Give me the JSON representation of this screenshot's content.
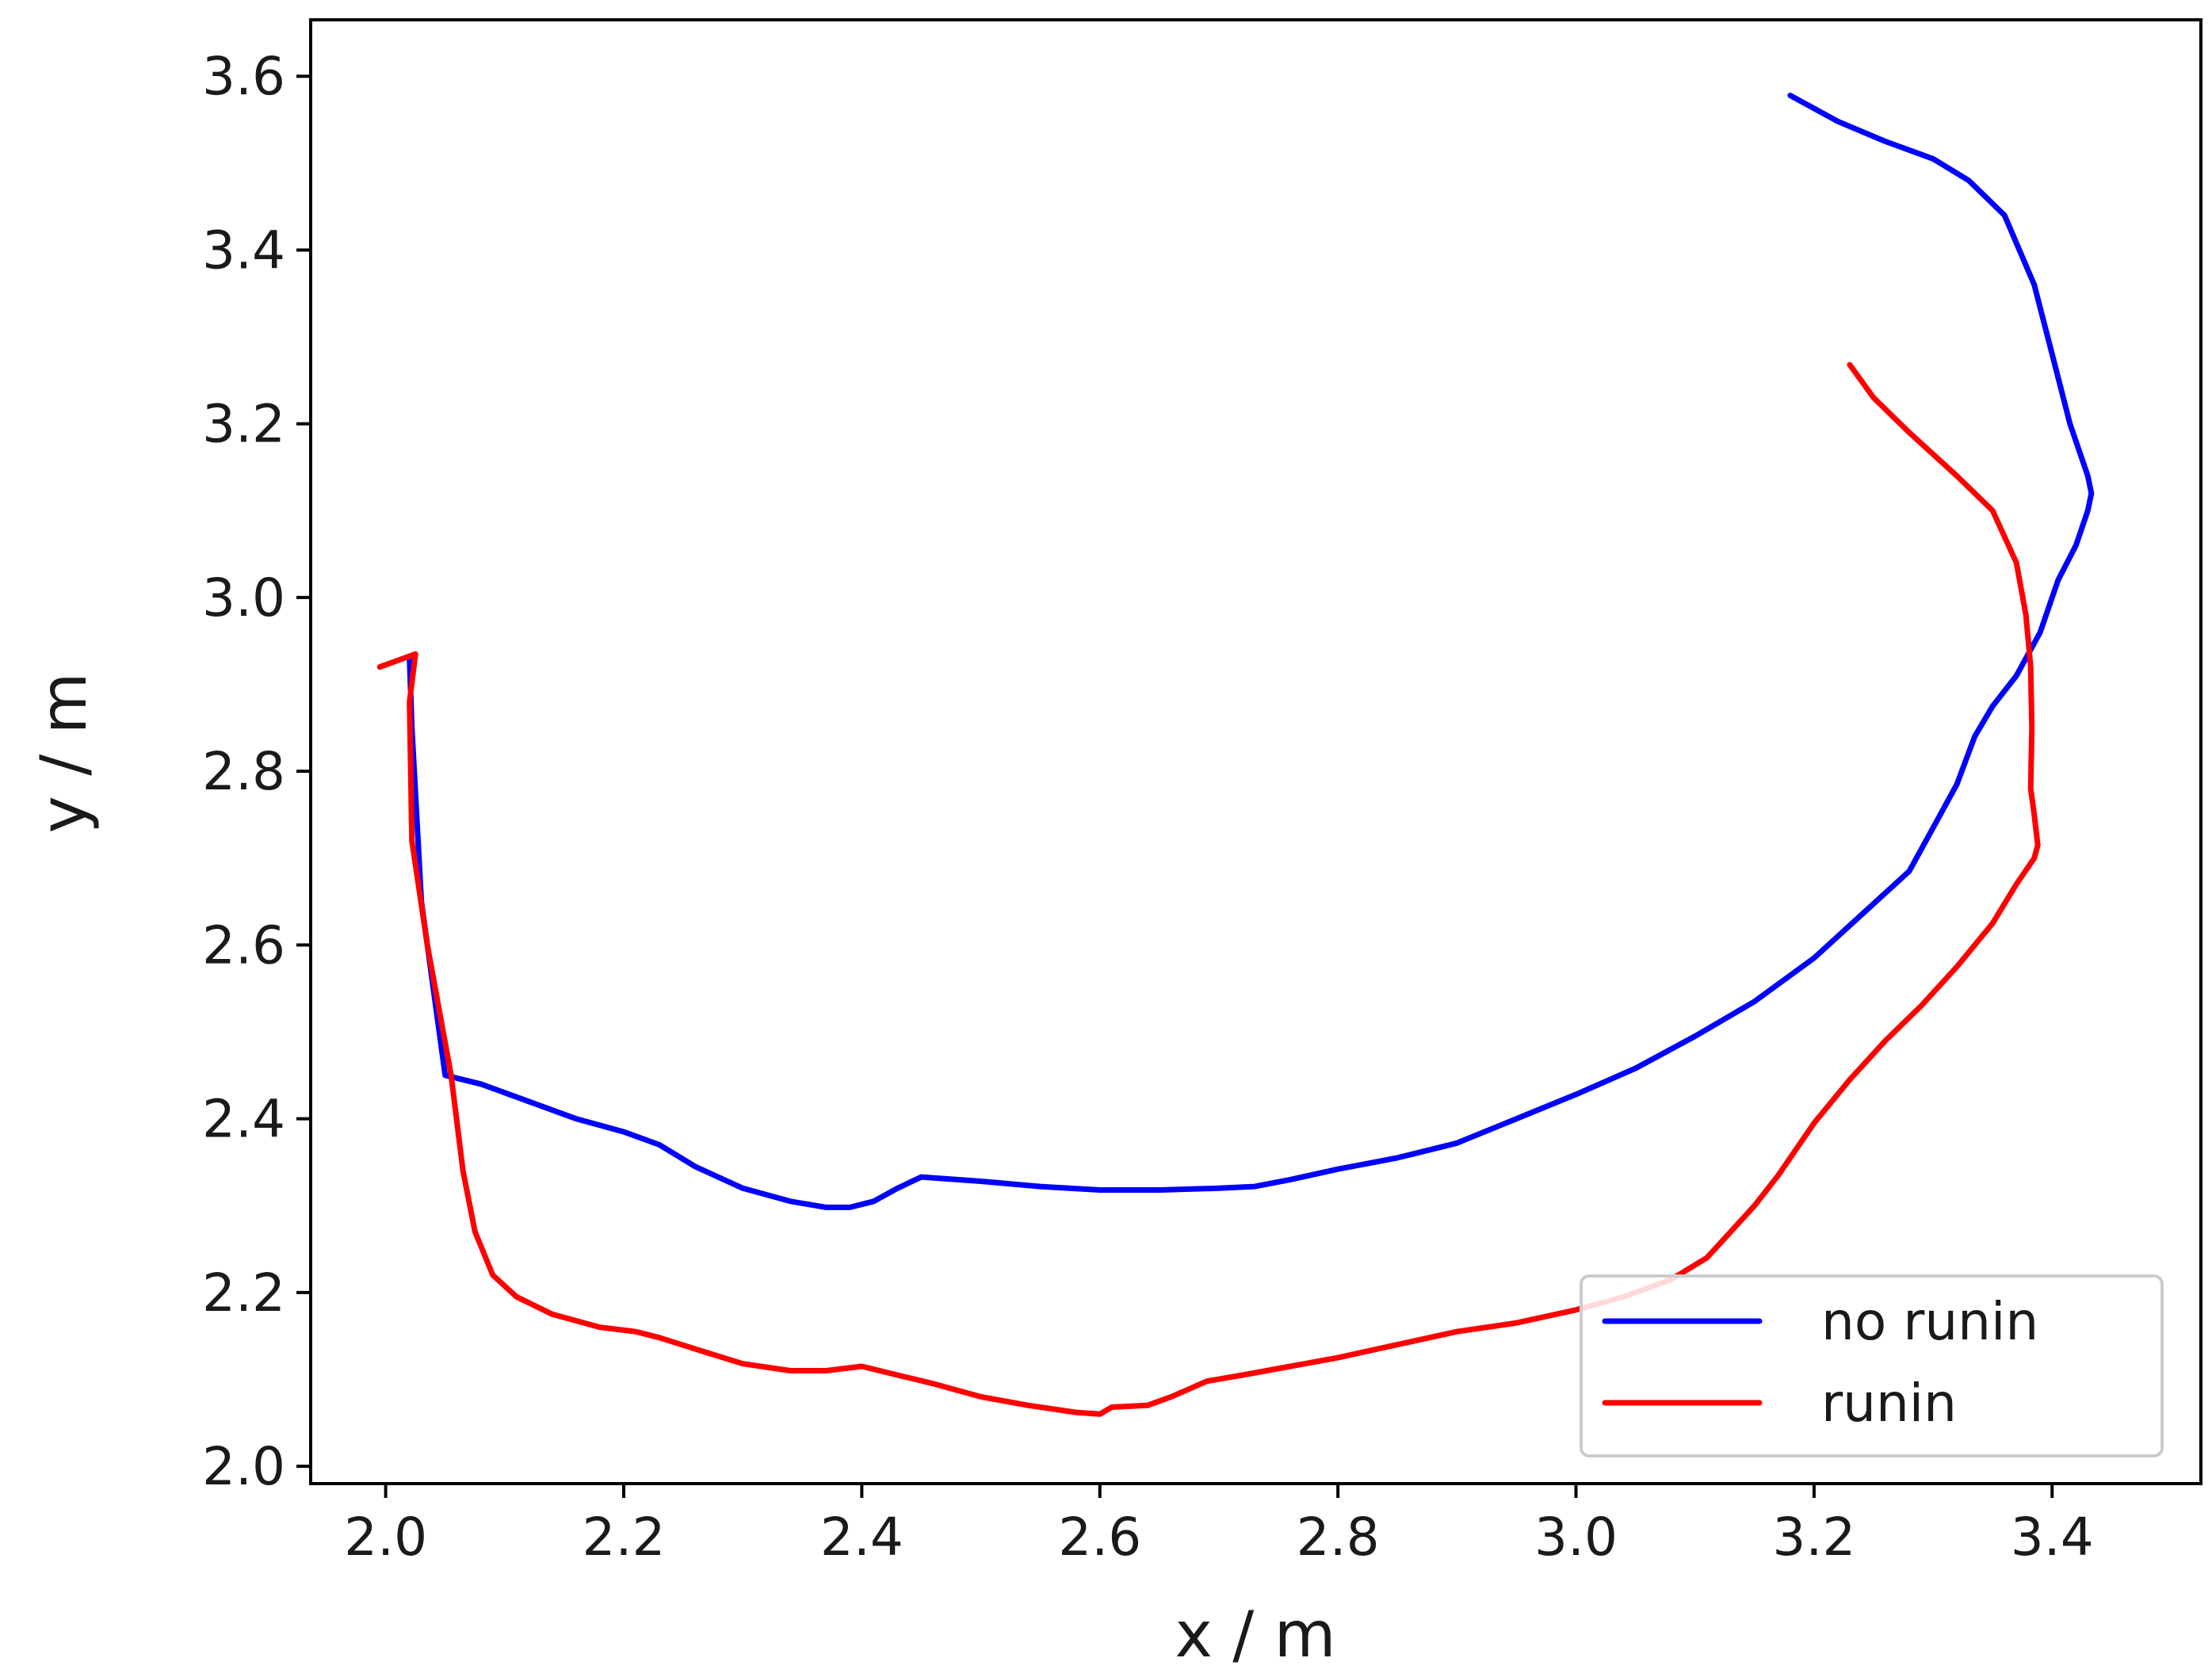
{
  "chart_data": {
    "type": "line",
    "title": "",
    "xlabel": "x / m",
    "ylabel": "y / m",
    "xlim": [
      1.937,
      3.525
    ],
    "ylim": [
      1.98,
      3.665
    ],
    "xticks": [
      2.0,
      2.2,
      2.4,
      2.6,
      2.8,
      3.0,
      3.2,
      3.4
    ],
    "yticks": [
      2.0,
      2.2,
      2.4,
      2.6,
      2.8,
      3.0,
      3.2,
      3.4,
      3.6
    ],
    "xtick_labels": [
      "2.0",
      "2.2",
      "2.4",
      "2.6",
      "2.8",
      "3.0",
      "3.2",
      "3.4"
    ],
    "ytick_labels": [
      "2.0",
      "2.2",
      "2.4",
      "2.6",
      "2.8",
      "3.0",
      "3.2",
      "3.4",
      "3.6"
    ],
    "grid": false,
    "legend_position": "bottom-right",
    "series": [
      {
        "name": "no runin",
        "color": "#0000ff",
        "x": [
          2.02,
          2.022,
          2.03,
          2.05,
          2.08,
          2.12,
          2.16,
          2.2,
          2.23,
          2.26,
          2.3,
          2.34,
          2.37,
          2.39,
          2.41,
          2.43,
          2.45,
          2.5,
          2.55,
          2.6,
          2.65,
          2.7,
          2.73,
          2.76,
          2.8,
          2.85,
          2.9,
          2.95,
          3.0,
          3.05,
          3.1,
          3.15,
          3.2,
          3.24,
          3.28,
          3.3,
          3.32,
          3.335,
          3.35,
          3.37,
          3.39,
          3.405,
          3.42,
          3.43,
          3.433,
          3.43,
          3.415,
          3.4,
          3.385,
          3.36,
          3.33,
          3.3,
          3.26,
          3.22,
          3.18
        ],
        "y": [
          2.93,
          2.85,
          2.65,
          2.45,
          2.44,
          2.42,
          2.4,
          2.385,
          2.37,
          2.345,
          2.32,
          2.305,
          2.298,
          2.298,
          2.305,
          2.32,
          2.333,
          2.328,
          2.322,
          2.318,
          2.318,
          2.32,
          2.322,
          2.33,
          2.342,
          2.355,
          2.372,
          2.4,
          2.428,
          2.458,
          2.495,
          2.535,
          2.585,
          2.635,
          2.685,
          2.735,
          2.785,
          2.84,
          2.875,
          2.91,
          2.96,
          3.02,
          3.06,
          3.1,
          3.12,
          3.14,
          3.2,
          3.28,
          3.36,
          3.44,
          3.48,
          3.505,
          3.525,
          3.548,
          3.578
        ]
      },
      {
        "name": "runin",
        "color": "#ff0000",
        "x": [
          1.995,
          2.025,
          2.02,
          2.022,
          2.035,
          2.055,
          2.065,
          2.075,
          2.09,
          2.11,
          2.14,
          2.18,
          2.21,
          2.23,
          2.26,
          2.3,
          2.34,
          2.37,
          2.4,
          2.43,
          2.46,
          2.5,
          2.54,
          2.58,
          2.6,
          2.61,
          2.64,
          2.66,
          2.69,
          2.72,
          2.76,
          2.8,
          2.85,
          2.9,
          2.95,
          3.0,
          3.04,
          3.08,
          3.11,
          3.13,
          3.15,
          3.17,
          3.2,
          3.23,
          3.26,
          3.29,
          3.32,
          3.35,
          3.37,
          3.385,
          3.388,
          3.385,
          3.382,
          3.383,
          3.382,
          3.378,
          3.37,
          3.35,
          3.32,
          3.28,
          3.25,
          3.23
        ],
        "y": [
          2.92,
          2.935,
          2.88,
          2.72,
          2.6,
          2.45,
          2.34,
          2.27,
          2.22,
          2.195,
          2.175,
          2.16,
          2.155,
          2.148,
          2.135,
          2.118,
          2.11,
          2.11,
          2.115,
          2.105,
          2.095,
          2.08,
          2.07,
          2.062,
          2.06,
          2.068,
          2.07,
          2.08,
          2.098,
          2.105,
          2.115,
          2.125,
          2.14,
          2.155,
          2.165,
          2.18,
          2.195,
          2.215,
          2.24,
          2.27,
          2.3,
          2.335,
          2.395,
          2.445,
          2.49,
          2.53,
          2.575,
          2.625,
          2.67,
          2.7,
          2.715,
          2.75,
          2.78,
          2.85,
          2.92,
          2.98,
          3.04,
          3.1,
          3.14,
          3.19,
          3.23,
          3.268
        ]
      }
    ]
  }
}
